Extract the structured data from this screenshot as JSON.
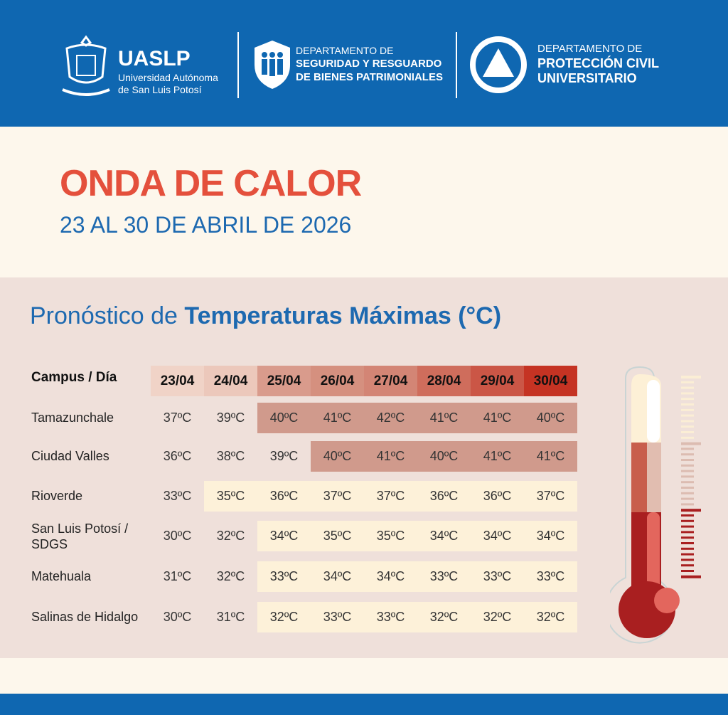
{
  "header": {
    "uaslp": {
      "acronym": "UASLP",
      "line1": "Universidad Autónoma",
      "line2": "de San Luis Potosí"
    },
    "dept1": {
      "line1": "DEPARTAMENTO DE",
      "line2": "SEGURIDAD Y RESGUARDO",
      "line3": "DE BIENES PATRIMONIALES"
    },
    "dept2": {
      "line1": "DEPARTAMENTO DE",
      "line2": "PROTECCIÓN CIVIL",
      "line3": "UNIVERSITARIO"
    }
  },
  "title": "ONDA DE CALOR",
  "subtitle": "23 AL 30 DE ABRIL DE 2026",
  "section": {
    "prefix": "Pronóstico de ",
    "bold": "Temperaturas Máximas (°C)"
  },
  "table": {
    "corner": "Campus / Día",
    "days": [
      "23/04",
      "24/04",
      "25/04",
      "26/04",
      "27/04",
      "28/04",
      "29/04",
      "30/04"
    ],
    "day_colors": [
      "#f0d3c7",
      "#ecc8bb",
      "#d99b8c",
      "#d5907f",
      "#d38575",
      "#cf6d5c",
      "#cb5646",
      "#c53323"
    ],
    "level_colors": {
      "hot": "#d09a8c",
      "warm": "#fdf1d9",
      "none": "transparent"
    },
    "rows": [
      {
        "campus": "Tamazunchale",
        "values": [
          "37ºC",
          "39ºC",
          "40ºC",
          "41ºC",
          "42ºC",
          "41ºC",
          "41ºC",
          "40ºC"
        ],
        "levels": [
          "none",
          "none",
          "hot",
          "hot",
          "hot",
          "hot",
          "hot",
          "hot"
        ]
      },
      {
        "campus": "Ciudad Valles",
        "values": [
          "36ºC",
          "38ºC",
          "39ºC",
          "40ºC",
          "41ºC",
          "40ºC",
          "41ºC",
          "41ºC"
        ],
        "levels": [
          "none",
          "none",
          "none",
          "hot",
          "hot",
          "hot",
          "hot",
          "hot"
        ]
      },
      {
        "campus": "Rioverde",
        "values": [
          "33ºC",
          "35ºC",
          "36ºC",
          "37ºC",
          "37ºC",
          "36ºC",
          "36ºC",
          "37ºC"
        ],
        "levels": [
          "none",
          "warm",
          "warm",
          "warm",
          "warm",
          "warm",
          "warm",
          "warm"
        ]
      },
      {
        "campus": "San Luis Potosí / SDGS",
        "values": [
          "30ºC",
          "32ºC",
          "34ºC",
          "35ºC",
          "35ºC",
          "34ºC",
          "34ºC",
          "34ºC"
        ],
        "levels": [
          "none",
          "none",
          "warm",
          "warm",
          "warm",
          "warm",
          "warm",
          "warm"
        ]
      },
      {
        "campus": "Matehuala",
        "values": [
          "31ºC",
          "32ºC",
          "33ºC",
          "34ºC",
          "34ºC",
          "33ºC",
          "33ºC",
          "33ºC"
        ],
        "levels": [
          "none",
          "none",
          "warm",
          "warm",
          "warm",
          "warm",
          "warm",
          "warm"
        ]
      },
      {
        "campus": "Salinas de Hidalgo",
        "values": [
          "30ºC",
          "31ºC",
          "32ºC",
          "33ºC",
          "33ºC",
          "32ºC",
          "32ºC",
          "32ºC"
        ],
        "levels": [
          "none",
          "none",
          "warm",
          "warm",
          "warm",
          "warm",
          "warm",
          "warm"
        ]
      }
    ]
  },
  "icons": {
    "thermometer": "thermometer-icon",
    "shield": "shield-people-icon",
    "triangle": "civil-protection-icon"
  }
}
